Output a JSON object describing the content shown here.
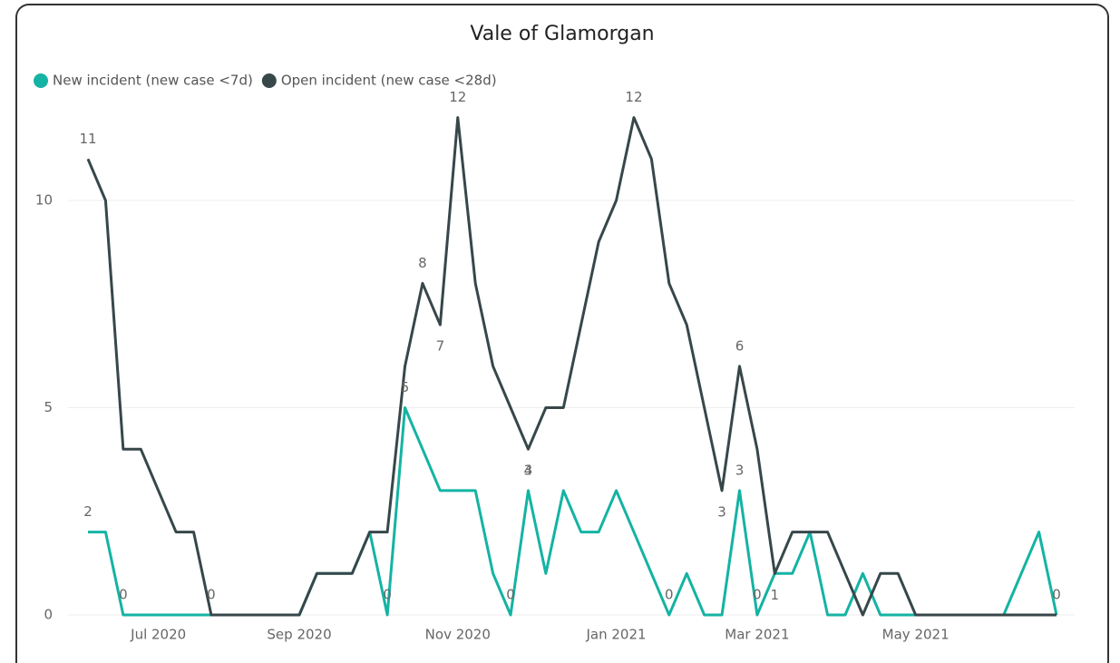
{
  "chart_data": {
    "type": "line",
    "title": "Vale of Glamorgan",
    "categories": [
      null,
      null,
      null,
      null,
      "Jul 2020",
      null,
      null,
      null,
      null,
      null,
      null,
      null,
      "Sep 2020",
      null,
      null,
      null,
      null,
      null,
      null,
      null,
      null,
      "Nov 2020",
      null,
      null,
      null,
      null,
      null,
      null,
      null,
      null,
      "Jan 2021",
      null,
      null,
      null,
      null,
      null,
      null,
      null,
      "Mar 2021",
      null,
      null,
      null,
      null,
      null,
      null,
      null,
      null,
      "May 2021",
      null,
      null,
      null,
      null,
      null,
      null,
      null,
      null
    ],
    "series": [
      {
        "name": "New incident (new case <7d)",
        "color": "#14b3a3",
        "values": [
          2,
          2,
          0,
          0,
          0,
          0,
          0,
          0,
          0,
          0,
          0,
          0,
          0,
          1,
          1,
          1,
          2,
          0,
          5,
          4,
          3,
          3,
          3,
          1,
          0,
          3,
          1,
          3,
          2,
          2,
          3,
          2,
          1,
          0,
          1,
          0,
          0,
          3,
          0,
          1,
          1,
          2,
          0,
          0,
          1,
          0,
          0,
          0,
          0,
          0,
          0,
          0,
          0,
          1,
          2,
          0
        ],
        "value_labels": [
          "2",
          null,
          "0",
          null,
          null,
          null,
          null,
          null,
          null,
          null,
          null,
          null,
          null,
          null,
          null,
          null,
          null,
          "0",
          "5",
          null,
          null,
          null,
          null,
          null,
          "0",
          "3",
          null,
          null,
          null,
          null,
          null,
          null,
          null,
          "0",
          null,
          null,
          null,
          "3",
          "0",
          null,
          null,
          null,
          null,
          null,
          null,
          null,
          null,
          null,
          null,
          null,
          null,
          null,
          null,
          null,
          null,
          null
        ]
      },
      {
        "name": "Open incident (new case <28d)",
        "color": "#37474a",
        "values": [
          11,
          10,
          4,
          4,
          3,
          2,
          2,
          0,
          0,
          0,
          0,
          0,
          0,
          1,
          1,
          1,
          2,
          2,
          6,
          8,
          7,
          12,
          8,
          6,
          5,
          4,
          5,
          5,
          7,
          9,
          10,
          12,
          11,
          8,
          7,
          5,
          3,
          6,
          4,
          1,
          2,
          2,
          2,
          1,
          0,
          1,
          1,
          0,
          0,
          0,
          0,
          0,
          0,
          0,
          0,
          0
        ],
        "value_labels": [
          "11",
          null,
          null,
          null,
          null,
          null,
          null,
          "0",
          null,
          null,
          null,
          null,
          null,
          null,
          null,
          null,
          null,
          null,
          null,
          "8",
          "7",
          "12",
          null,
          null,
          null,
          "4",
          null,
          null,
          null,
          null,
          null,
          "12",
          null,
          null,
          null,
          null,
          "3",
          "6",
          null,
          "1",
          null,
          null,
          null,
          null,
          null,
          null,
          null,
          null,
          null,
          null,
          null,
          null,
          null,
          null,
          null,
          "0"
        ]
      }
    ],
    "ylim": [
      0,
      12.5
    ],
    "yticks": [
      0,
      5,
      10
    ],
    "grid": true,
    "legend": "top-left"
  }
}
